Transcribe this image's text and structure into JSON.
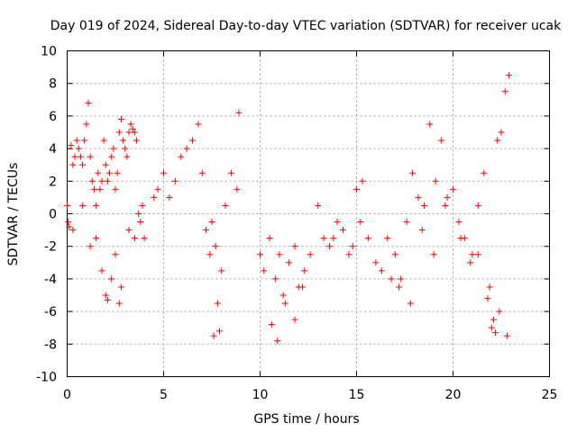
{
  "chart_data": {
    "type": "scatter",
    "title": "Day 019 of 2024, Sidereal Day-to-day VTEC variation (SDTVAR) for receiver ucak",
    "xlabel": "GPS time / hours",
    "ylabel": "SDTVAR / TECUs",
    "xlim": [
      0,
      25
    ],
    "ylim": [
      -10,
      10
    ],
    "xticks": [
      0,
      5,
      10,
      15,
      20,
      25
    ],
    "xtick_labels": [
      "0",
      "5",
      "10",
      "15",
      "20",
      "25"
    ],
    "yticks": [
      -10,
      -8,
      -6,
      -4,
      -2,
      0,
      2,
      4,
      6,
      8,
      10
    ],
    "ytick_labels": [
      "-10",
      "-8",
      "-6",
      "-4",
      "-2",
      "0",
      "2",
      "4",
      "6",
      "8",
      "10"
    ],
    "grid": true,
    "marker": "plus",
    "color": "#ff0000",
    "series": [
      {
        "name": "ucak",
        "x": [
          0.0,
          0.1,
          0.2,
          0.3,
          0.4,
          0.5,
          0.6,
          0.7,
          0.8,
          0.9,
          1.0,
          1.1,
          1.2,
          1.3,
          1.4,
          1.5,
          1.6,
          1.7,
          1.8,
          1.9,
          2.0,
          2.1,
          2.2,
          2.3,
          2.4,
          2.5,
          2.6,
          2.7,
          2.8,
          2.9,
          3.0,
          3.1,
          3.2,
          3.3,
          3.4,
          3.5,
          3.6,
          3.7,
          3.8,
          3.9,
          4.0,
          4.5,
          4.7,
          5.0,
          5.3,
          5.6,
          5.9,
          6.2,
          6.5,
          6.8,
          7.0,
          7.2,
          7.5,
          7.7,
          7.9,
          8.2,
          8.5,
          8.8,
          8.9,
          10.0,
          10.2,
          10.5,
          10.8,
          11.0,
          11.2,
          11.5,
          11.8,
          12.0,
          12.3,
          12.6,
          13.0,
          13.3,
          13.6,
          14.0,
          14.3,
          14.6,
          15.0,
          15.3,
          15.6,
          16.0,
          16.3,
          16.6,
          17.0,
          17.3,
          17.6,
          17.9,
          18.2,
          18.5,
          18.8,
          19.1,
          19.4,
          19.7,
          20.0,
          20.3,
          20.6,
          21.0,
          21.3,
          21.6,
          21.9,
          22.1,
          22.3,
          22.5,
          22.7,
          22.9,
          0.05,
          0.3,
          0.8,
          1.2,
          1.5,
          1.8,
          2.0,
          2.1,
          2.3,
          2.5,
          2.7,
          2.8,
          3.2,
          3.5,
          7.4,
          7.6,
          7.8,
          8.0,
          10.6,
          10.9,
          11.3,
          11.8,
          12.2,
          13.8,
          14.8,
          15.2,
          16.8,
          17.2,
          17.8,
          18.4,
          19.0,
          19.6,
          20.4,
          20.9,
          21.3,
          21.8,
          22.0,
          22.2,
          22.4,
          22.8
        ],
        "y": [
          0.5,
          -0.8,
          4.2,
          3.0,
          3.5,
          4.5,
          4.0,
          3.5,
          3.0,
          4.5,
          5.5,
          6.8,
          3.5,
          2.0,
          1.5,
          0.5,
          2.5,
          1.5,
          2.0,
          4.5,
          3.0,
          2.0,
          2.5,
          3.5,
          4.0,
          1.5,
          2.5,
          5.0,
          5.8,
          4.5,
          4.0,
          3.5,
          5.0,
          5.5,
          5.2,
          5.0,
          4.5,
          0.0,
          -0.5,
          0.5,
          -1.5,
          1.0,
          1.5,
          2.5,
          1.0,
          2.0,
          3.5,
          4.0,
          4.5,
          5.5,
          2.5,
          -1.0,
          -0.5,
          -2.0,
          -7.2,
          0.5,
          2.5,
          1.5,
          6.2,
          -2.5,
          -3.5,
          -1.5,
          -4.0,
          -2.5,
          -5.0,
          -3.0,
          -2.0,
          -4.5,
          -3.5,
          -2.5,
          0.5,
          -1.5,
          -2.0,
          -0.5,
          -1.0,
          -2.5,
          1.5,
          2.0,
          -1.5,
          -3.0,
          -3.5,
          -1.5,
          -2.5,
          -4.0,
          -0.5,
          2.5,
          1.0,
          0.5,
          5.5,
          2.0,
          4.5,
          1.0,
          1.5,
          -0.5,
          -1.5,
          -2.5,
          0.5,
          2.5,
          -4.5,
          -6.5,
          4.5,
          5.0,
          7.5,
          8.5,
          -0.5,
          -1.0,
          0.5,
          -2.0,
          -1.5,
          -3.5,
          -5.0,
          -5.3,
          -4.0,
          -2.5,
          -5.5,
          -4.5,
          -1.0,
          -1.5,
          -2.5,
          -7.5,
          -5.5,
          -3.5,
          -6.8,
          -7.8,
          -5.5,
          -6.5,
          -4.5,
          -1.5,
          -2.0,
          -0.5,
          -4.0,
          -4.5,
          -5.5,
          -1.0,
          -2.5,
          0.5,
          -1.5,
          -3.0,
          -2.5,
          -5.2,
          -7.0,
          -7.3,
          -6.0,
          -7.5
        ]
      }
    ]
  }
}
